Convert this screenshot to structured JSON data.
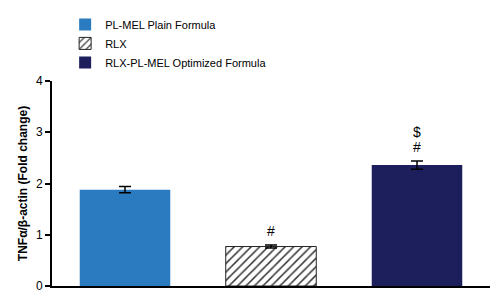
{
  "chart_data": {
    "type": "bar",
    "ylabel": "TNFα/β-actin (Fold change)",
    "categories": [
      null,
      null,
      null
    ],
    "series": [
      {
        "name": "PL-MEL Plain Formula",
        "color": "#2a7bc0",
        "values": [
          1.88,
          null,
          null
        ],
        "errors": [
          0.06,
          null,
          null
        ]
      },
      {
        "name": "RLX",
        "color": "#dcdcdc",
        "marker": "hatch",
        "values": [
          null,
          0.77,
          null
        ],
        "errors": [
          null,
          0.03,
          null
        ]
      },
      {
        "name": "RLX-PL-MEL Optimized Formula",
        "color": "#1c1f5c",
        "values": [
          null,
          null,
          2.36
        ],
        "errors": [
          null,
          null,
          0.08
        ]
      }
    ],
    "ylim": [
      0,
      4
    ],
    "yticks": [
      0,
      1,
      2,
      3,
      4
    ],
    "grid": false,
    "legend": "top left",
    "tick_labels": "y",
    "annotations": [
      {
        "series": "RLX",
        "text": "#"
      },
      {
        "series": "RLX-PL-MEL Optimized Formula",
        "text": "#"
      },
      {
        "series": "RLX-PL-MEL Optimized Formula",
        "text": "$"
      }
    ]
  }
}
